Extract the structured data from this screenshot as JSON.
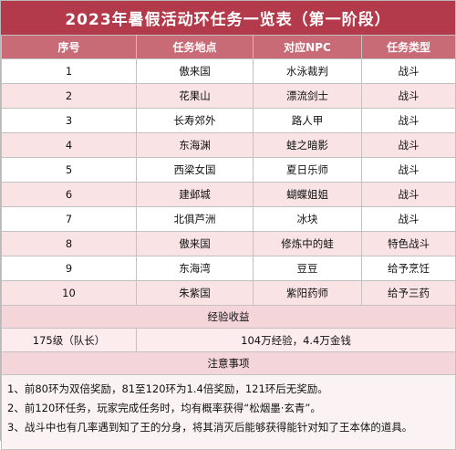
{
  "title": "2023年暑假活动环任务一览表（第一阶段）",
  "headers": [
    "序号",
    "任务地点",
    "对应NPC",
    "任务类型"
  ],
  "rows": [
    {
      "no": "1",
      "place": "傲来国",
      "npc": "水泳裁判",
      "type": "战斗"
    },
    {
      "no": "2",
      "place": "花果山",
      "npc": "漂流剑士",
      "type": "战斗"
    },
    {
      "no": "3",
      "place": "长寿郊外",
      "npc": "路人甲",
      "type": "战斗"
    },
    {
      "no": "4",
      "place": "东海渊",
      "npc": "蛙之暗影",
      "type": "战斗"
    },
    {
      "no": "5",
      "place": "西梁女国",
      "npc": "夏日乐师",
      "type": "战斗"
    },
    {
      "no": "6",
      "place": "建邺城",
      "npc": "蝴蝶姐姐",
      "type": "战斗"
    },
    {
      "no": "7",
      "place": "北俱芦洲",
      "npc": "冰块",
      "type": "战斗"
    },
    {
      "no": "8",
      "place": "傲来国",
      "npc": "修炼中的蛙",
      "type": "特色战斗"
    },
    {
      "no": "9",
      "place": "东海湾",
      "npc": "豆豆",
      "type": "给予烹饪"
    },
    {
      "no": "10",
      "place": "朱紫国",
      "npc": "紫阳药师",
      "type": "给予三药"
    }
  ],
  "exp_section": {
    "heading": "经验收益",
    "level": "175级（队长）",
    "reward": "104万经验，4.4万金钱"
  },
  "notes_section": {
    "heading": "注意事项",
    "lines": [
      "1、前80环为双倍奖励，81至120环为1.4倍奖励，121环后无奖励。",
      "2、前120环任务，玩家完成任务时，均有概率获得“松烟墨·玄青”。",
      "3、战斗中也有几率遇到知了王的分身，将其消灭后能够获得能针对知了王本体的道具。"
    ]
  },
  "colors": {
    "title_bg": "#b33a4a",
    "header_bg": "#c96b77",
    "row_alt_bg": "#f9e3e5"
  }
}
